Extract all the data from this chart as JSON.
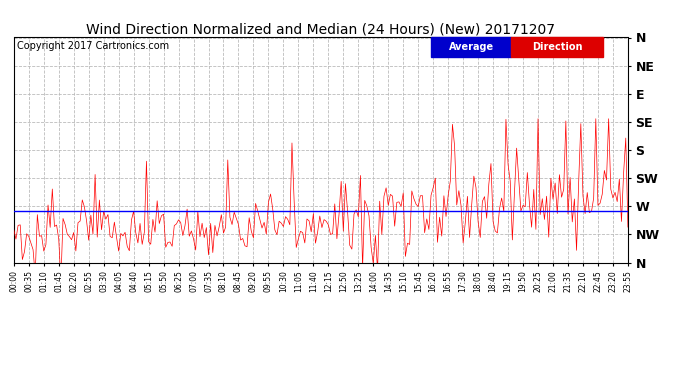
{
  "title": "Wind Direction Normalized and Median (24 Hours) (New) 20171207",
  "copyright": "Copyright 2017 Cartronics.com",
  "background_color": "#ffffff",
  "plot_bg_color": "#ffffff",
  "ytick_labels": [
    "N",
    "NW",
    "W",
    "SW",
    "S",
    "SE",
    "E",
    "NE",
    "N"
  ],
  "ytick_values": [
    360,
    315,
    270,
    225,
    180,
    135,
    90,
    45,
    0
  ],
  "ylim": [
    0,
    360
  ],
  "legend_average_color": "#0000ff",
  "legend_direction_color": "#ff0000",
  "legend_average_label": "Average",
  "legend_direction_label": "Direction",
  "average_line_value": 278,
  "title_fontsize": 10,
  "copyright_fontsize": 7,
  "tick_fontsize": 9,
  "grid_color": "#bbbbbb",
  "grid_linestyle": "--",
  "red_line_color": "#ff0000",
  "blue_line_color": "#0000ff",
  "num_points": 288,
  "tick_interval_minutes": 35
}
